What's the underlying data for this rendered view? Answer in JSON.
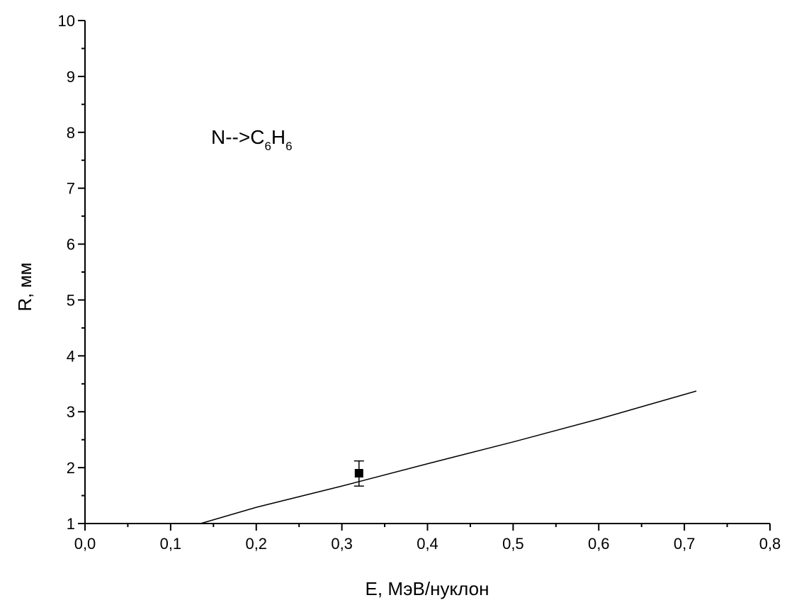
{
  "chart_data": {
    "type": "scatter",
    "title": "",
    "xlabel": "E, МэВ/нуклон",
    "ylabel": "R, мм",
    "xlim": [
      0.0,
      0.8
    ],
    "ylim": [
      1,
      10
    ],
    "x_ticks": [
      "0,0",
      "0,1",
      "0,2",
      "0,3",
      "0,4",
      "0,5",
      "0,6",
      "0,7",
      "0,8"
    ],
    "y_ticks": [
      "1",
      "2",
      "3",
      "4",
      "5",
      "6",
      "7",
      "8",
      "9",
      "10"
    ],
    "grid": false,
    "legend": "none",
    "annotation": {
      "prefix": "N-->C",
      "sub1": "6",
      "mid": "H",
      "sub2": "6"
    },
    "series": [
      {
        "kind": "points",
        "marker": "square",
        "color": "#000000",
        "points": [
          {
            "x": 0.32,
            "y": 1.9,
            "err_low": 1.67,
            "err_high": 2.12
          }
        ]
      },
      {
        "kind": "line",
        "color": "#000000",
        "points": [
          {
            "x": 0.135,
            "y": 1.0
          },
          {
            "x": 0.2,
            "y": 1.29
          },
          {
            "x": 0.3,
            "y": 1.67
          },
          {
            "x": 0.4,
            "y": 2.07
          },
          {
            "x": 0.5,
            "y": 2.46
          },
          {
            "x": 0.6,
            "y": 2.87
          },
          {
            "x": 0.714,
            "y": 3.37
          }
        ]
      }
    ]
  }
}
